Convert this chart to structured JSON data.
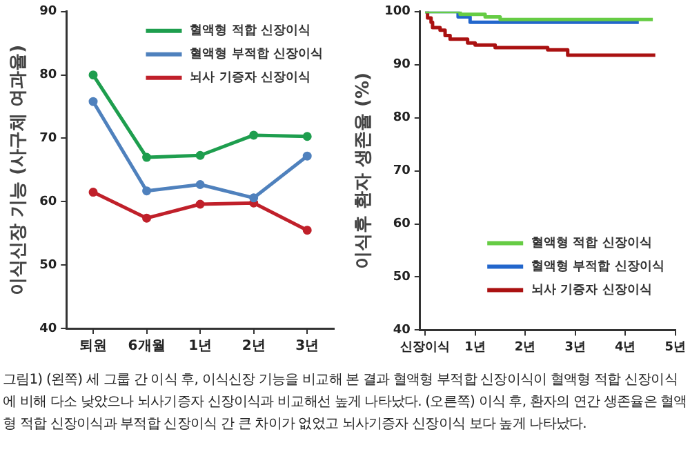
{
  "chart_data": [
    {
      "type": "line",
      "ylabel": "이식신장 기능 (사구체 여과율)",
      "categories": [
        "퇴원",
        "6개월",
        "1년",
        "2년",
        "3년"
      ],
      "ylim": [
        40,
        90
      ],
      "yticks": [
        40,
        50,
        60,
        70,
        80,
        90
      ],
      "grid": false,
      "legend": "top right",
      "marker": "circle",
      "line_style": "solid",
      "series": [
        {
          "name": "혈액형 적합 신장이식",
          "color": "#1e9e4e",
          "values": [
            80,
            67,
            67.3,
            70.5,
            70.3
          ]
        },
        {
          "name": "혈액형 부적합 신장이식",
          "color": "#4f81bd",
          "values": [
            75.8,
            61.7,
            62.7,
            60.6,
            67.2
          ]
        },
        {
          "name": "뇌사 기증자 신장이식",
          "color": "#c0202a",
          "values": [
            61.5,
            57.4,
            59.6,
            59.8,
            55.5
          ]
        }
      ]
    },
    {
      "type": "step",
      "ylabel": "이식후 환자 생존율 (%)",
      "xlim": [
        -0.1,
        5
      ],
      "xticks": [
        {
          "value": 0,
          "label": "신장이식"
        },
        {
          "value": 1,
          "label": "1년"
        },
        {
          "value": 2,
          "label": "2년"
        },
        {
          "value": 3,
          "label": "3년"
        },
        {
          "value": 4,
          "label": "4년"
        },
        {
          "value": 5,
          "label": "5년"
        }
      ],
      "ylim": [
        40,
        100
      ],
      "yticks": [
        40,
        50,
        60,
        70,
        80,
        90,
        100
      ],
      "grid": false,
      "legend": "bottom right",
      "marker": "none",
      "line_style": "solid",
      "series": [
        {
          "name": "혈액형 적합 신장이식",
          "color": "#66cc44",
          "x": [
            0,
            0.7,
            1.2,
            1.5,
            4.55
          ],
          "values": [
            100,
            99.5,
            99,
            98.5,
            98.5
          ]
        },
        {
          "name": "혈액형 부적합 신장이식",
          "color": "#2266cc",
          "x": [
            0,
            0.66,
            0.9,
            4.27
          ],
          "values": [
            100,
            99,
            98,
            98
          ]
        },
        {
          "name": "뇌사 기증자 신장이식",
          "color": "#aa1111",
          "x": [
            0,
            0.05,
            0.12,
            0.15,
            0.3,
            0.4,
            0.5,
            0.85,
            1.0,
            1.4,
            2.45,
            2.85,
            4.6
          ],
          "values": [
            100,
            98.8,
            98,
            97,
            96.5,
            95.5,
            94.8,
            94.1,
            93.7,
            93.2,
            92.8,
            91.8,
            91.8
          ]
        }
      ]
    },
    {
      "type": "other",
      "annotations": [
        "그림1) (왼쪽) 세 그룹 간 이식 후, 이식신장 기능을 비교해 본 결과 혈액형 부적합 신장이식이 혈액형 적합 신장이식에 비해 다소 낮았으나 뇌사기증자 신장이식과 비교해선 높게 나타났다. (오른쪽) 이식 후, 환자의 연간 생존율은 혈액형 적합 신장이식과 부적합 신장이식 간 큰 차이가 없었고 뇌사기증자 신장이식 보다 높게 나타났다."
      ]
    }
  ]
}
